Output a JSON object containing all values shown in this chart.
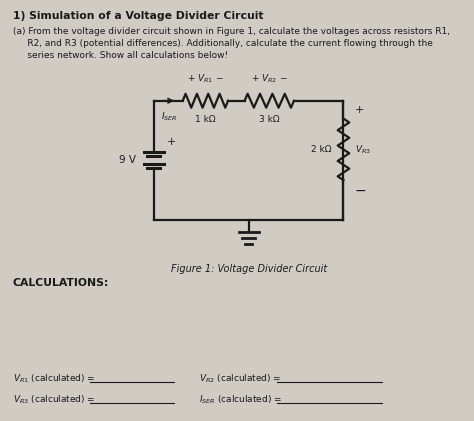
{
  "title": "1) Simulation of a Voltage Divider Circuit",
  "prob_line1": "(a) From the voltage divider circuit shown in Figure 1, calculate the voltages across resistors R1,",
  "prob_line2": "     R2, and R3 (potential differences). Additionally, calculate the current flowing through the",
  "prob_line3": "     series network. Show all calculations below!",
  "figure_caption": "Figure 1: Voltage Divider Circuit",
  "calculations_label": "CALCULATIONS:",
  "bg_color": "#d0ccc4",
  "text_color": "#1a1a1a",
  "circuit": {
    "voltage": "9 V",
    "r1": "1 kΩ",
    "r2": "3 kΩ",
    "r3": "2 kΩ"
  }
}
